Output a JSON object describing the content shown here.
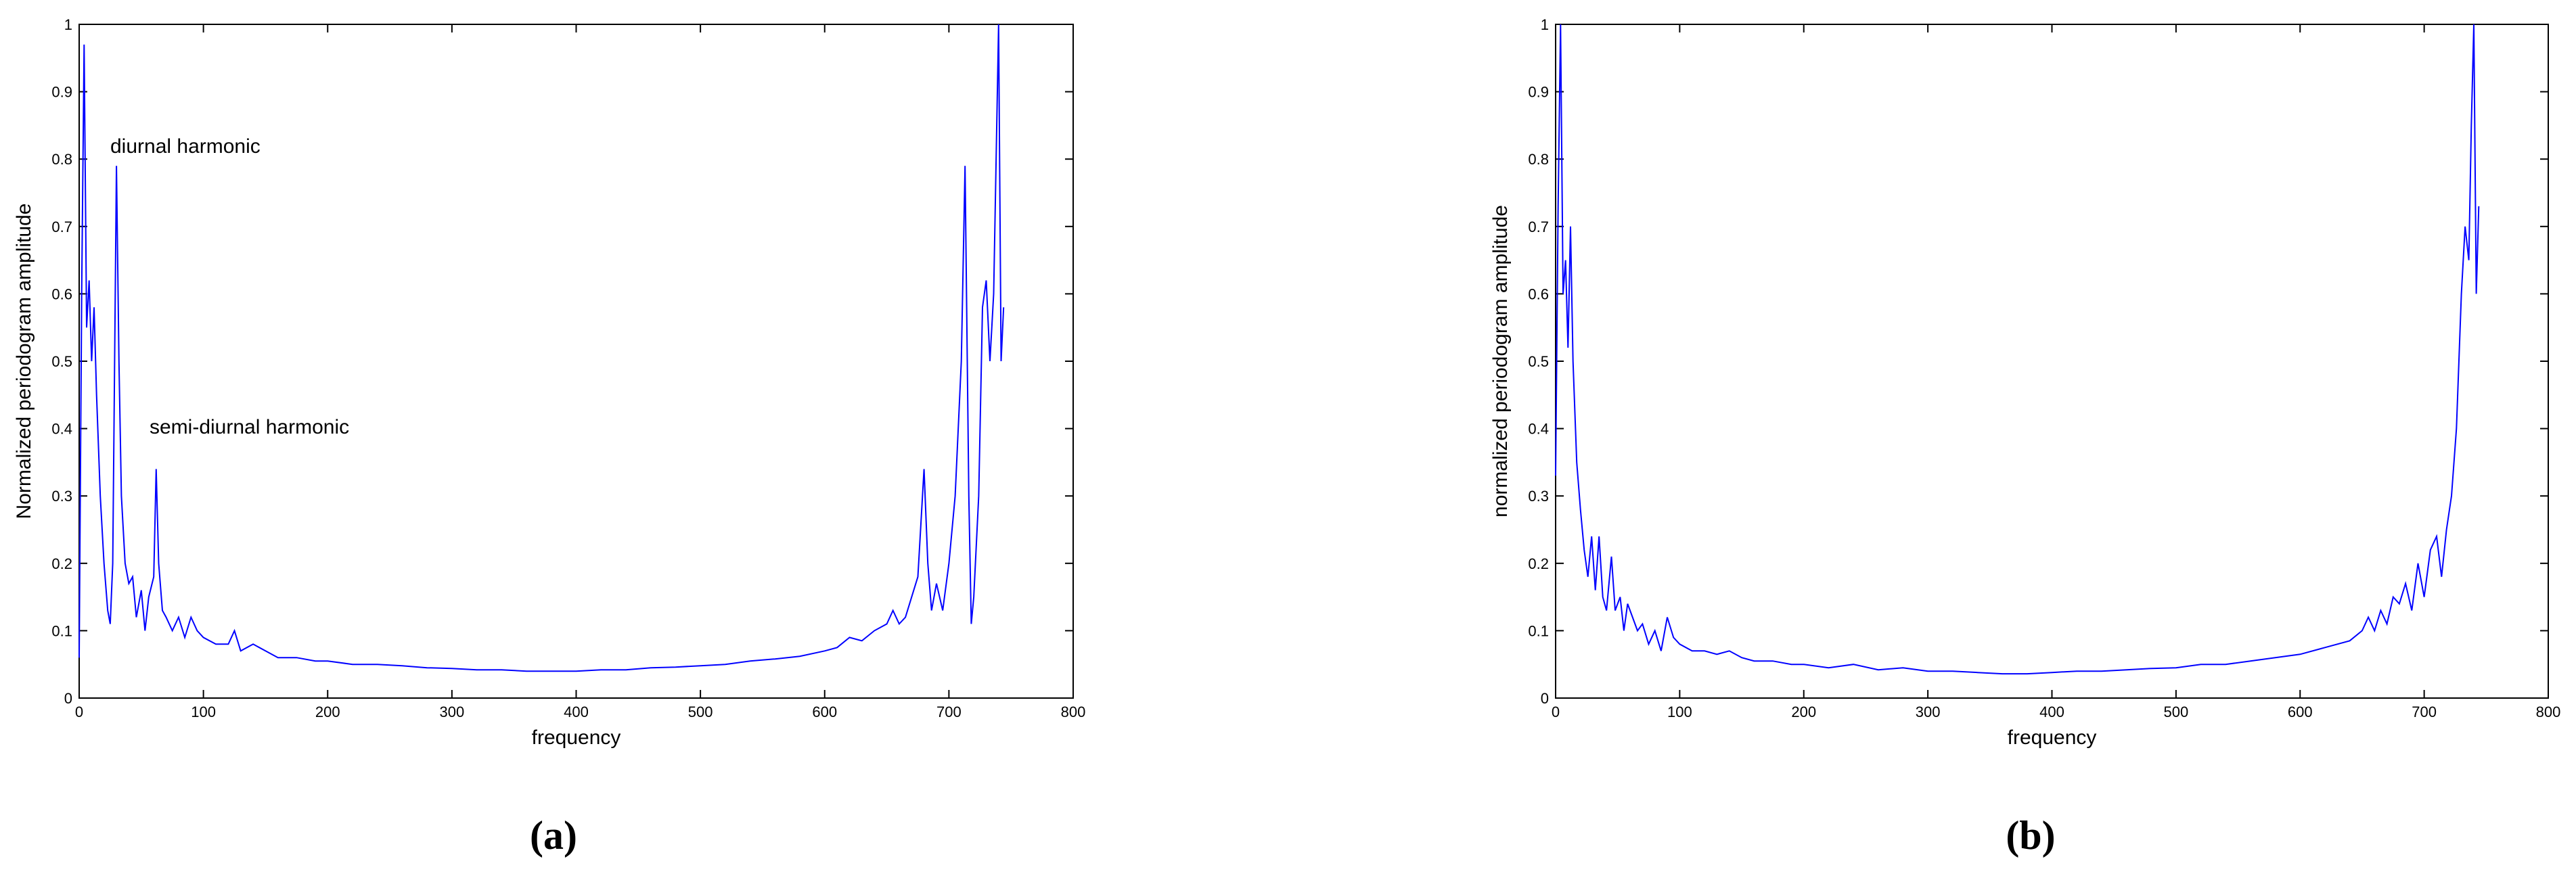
{
  "chart_data": [
    {
      "type": "line",
      "xlabel": "frequency",
      "ylabel": "Normalized periodogram amplitude",
      "caption": "(a)",
      "annotations": [
        "diurnal harmonic",
        "semi-diurnal harmonic"
      ],
      "xlim": [
        0,
        800
      ],
      "xticks": [
        0,
        100,
        200,
        300,
        400,
        500,
        600,
        700,
        800
      ],
      "ylim": [
        0,
        1
      ],
      "yticks": [
        0,
        0.1,
        0.2,
        0.3,
        0.4,
        0.5,
        0.6,
        0.7,
        0.8,
        0.9,
        1
      ],
      "color": "#0000ff",
      "x": [
        0,
        2,
        4,
        6,
        8,
        10,
        12,
        14,
        17,
        20,
        23,
        25,
        27,
        30,
        32,
        34,
        37,
        40,
        43,
        46,
        50,
        53,
        56,
        60,
        62,
        64,
        67,
        70,
        75,
        80,
        85,
        90,
        95,
        100,
        110,
        120,
        125,
        130,
        140,
        150,
        160,
        175,
        190,
        200,
        220,
        240,
        260,
        280,
        300,
        320,
        340,
        360,
        380,
        400,
        420,
        440,
        460,
        480,
        500,
        520,
        540,
        560,
        580,
        600,
        610,
        620,
        630,
        640,
        650,
        655,
        660,
        665,
        670,
        675,
        680,
        683,
        686,
        690,
        695,
        700,
        705,
        710,
        713,
        716,
        718,
        720,
        724,
        727,
        730,
        733,
        736,
        740,
        742,
        744
      ],
      "values": [
        0.06,
        0.6,
        0.97,
        0.55,
        0.62,
        0.5,
        0.58,
        0.45,
        0.3,
        0.2,
        0.13,
        0.11,
        0.2,
        0.79,
        0.5,
        0.3,
        0.2,
        0.17,
        0.18,
        0.12,
        0.16,
        0.1,
        0.15,
        0.18,
        0.34,
        0.2,
        0.13,
        0.12,
        0.1,
        0.12,
        0.09,
        0.12,
        0.1,
        0.09,
        0.08,
        0.08,
        0.1,
        0.07,
        0.08,
        0.07,
        0.06,
        0.06,
        0.055,
        0.055,
        0.05,
        0.05,
        0.048,
        0.045,
        0.044,
        0.042,
        0.042,
        0.04,
        0.04,
        0.04,
        0.042,
        0.042,
        0.045,
        0.046,
        0.048,
        0.05,
        0.055,
        0.058,
        0.062,
        0.07,
        0.075,
        0.09,
        0.085,
        0.1,
        0.11,
        0.13,
        0.11,
        0.12,
        0.15,
        0.18,
        0.34,
        0.2,
        0.13,
        0.17,
        0.13,
        0.2,
        0.3,
        0.5,
        0.79,
        0.3,
        0.11,
        0.15,
        0.3,
        0.58,
        0.62,
        0.5,
        0.6,
        1.0,
        0.5,
        0.58
      ]
    },
    {
      "type": "line",
      "xlabel": "frequency",
      "ylabel": "normalized periodogram amplitude",
      "caption": "(b)",
      "xlim": [
        0,
        800
      ],
      "xticks": [
        0,
        100,
        200,
        300,
        400,
        500,
        600,
        700,
        800
      ],
      "ylim": [
        0,
        1
      ],
      "yticks": [
        0,
        0.1,
        0.2,
        0.3,
        0.4,
        0.5,
        0.6,
        0.7,
        0.8,
        0.9,
        1
      ],
      "color": "#0000ff",
      "x": [
        0,
        2,
        4,
        6,
        8,
        10,
        12,
        14,
        17,
        20,
        23,
        26,
        29,
        32,
        35,
        38,
        41,
        45,
        48,
        52,
        55,
        58,
        62,
        66,
        70,
        75,
        80,
        85,
        90,
        95,
        100,
        110,
        120,
        130,
        140,
        150,
        160,
        175,
        190,
        200,
        220,
        240,
        260,
        280,
        300,
        320,
        340,
        360,
        380,
        400,
        420,
        440,
        460,
        480,
        500,
        520,
        540,
        560,
        580,
        600,
        620,
        640,
        650,
        655,
        660,
        665,
        670,
        675,
        680,
        685,
        690,
        695,
        700,
        705,
        710,
        714,
        718,
        722,
        726,
        730,
        733,
        736,
        738,
        740,
        742,
        744
      ],
      "values": [
        0.33,
        0.73,
        1.0,
        0.6,
        0.65,
        0.52,
        0.7,
        0.5,
        0.35,
        0.28,
        0.22,
        0.18,
        0.24,
        0.16,
        0.24,
        0.15,
        0.13,
        0.21,
        0.13,
        0.15,
        0.1,
        0.14,
        0.12,
        0.1,
        0.11,
        0.08,
        0.1,
        0.07,
        0.12,
        0.09,
        0.08,
        0.07,
        0.07,
        0.065,
        0.07,
        0.06,
        0.055,
        0.055,
        0.05,
        0.05,
        0.045,
        0.05,
        0.042,
        0.045,
        0.04,
        0.04,
        0.038,
        0.036,
        0.036,
        0.038,
        0.04,
        0.04,
        0.042,
        0.044,
        0.045,
        0.05,
        0.05,
        0.055,
        0.06,
        0.065,
        0.075,
        0.085,
        0.1,
        0.12,
        0.1,
        0.13,
        0.11,
        0.15,
        0.14,
        0.17,
        0.13,
        0.2,
        0.15,
        0.22,
        0.24,
        0.18,
        0.25,
        0.3,
        0.4,
        0.6,
        0.7,
        0.65,
        0.85,
        1.0,
        0.6,
        0.73
      ]
    }
  ]
}
